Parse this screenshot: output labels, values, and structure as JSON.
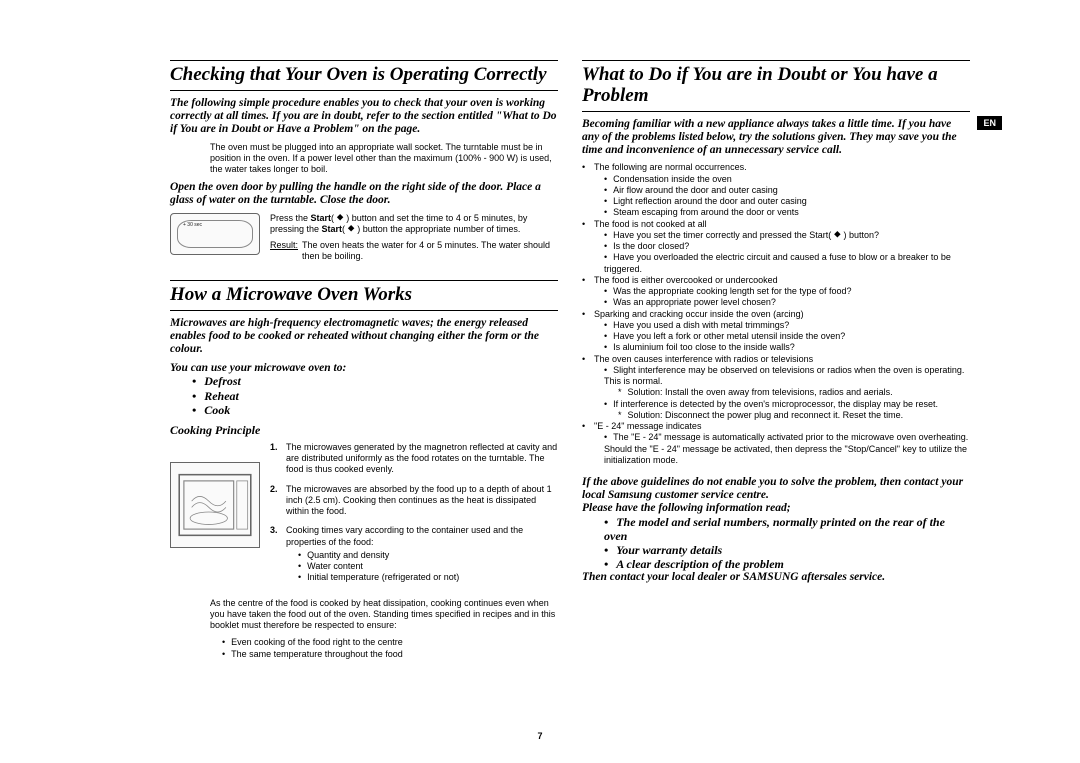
{
  "langTab": "EN",
  "pageNumber": "7",
  "left": {
    "sec1": {
      "title": "Checking that Your Oven is Operating Correctly",
      "intro": "The following simple procedure enables you to check that your oven is working correctly at all times. If you are in doubt, refer to the section entitled \"What to Do if You are in Doubt or Have a Problem\" on the page.",
      "para1": "The oven must be plugged into an appropriate wall socket. The turntable must be in position in the oven. If a power level other than the maximum (100% - 900 W) is used, the water takes longer to boil.",
      "step_open": "Open the oven door by pulling the handle on the right side of the door. Place a glass of water on the turntable. Close the door.",
      "box1_label": "+ 30 sec",
      "press_text_a": "Press the ",
      "press_text_b": " button and set the time to 4 or 5 minutes, by pressing the ",
      "press_text_c": " button the appropriate number of times.",
      "start_label": "Start",
      "result_label": "Result:",
      "result_text": "The oven heats the water for 4 or 5 minutes. The water should then be boiling."
    },
    "sec2": {
      "title": "How a Microwave Oven Works",
      "intro1": "Microwaves are high-frequency electromagnetic waves; the energy released enables food to be cooked or reheated without changing either the form or the colour.",
      "intro2": "You can use your microwave oven to:",
      "uses": [
        "Defrost",
        "Reheat",
        "Cook"
      ],
      "subhead": "Cooking Principle",
      "items": [
        "The microwaves generated by the magnetron reflected at cavity and are distributed uniformly as the food rotates on the turntable. The food is thus cooked evenly.",
        "The microwaves are absorbed by the food up to a depth of about 1 inch (2.5 cm). Cooking then continues as the heat is dissipated within the food.",
        "Cooking times vary according to the container used and the properties of the food:"
      ],
      "props": [
        "Quantity and density",
        "Water content",
        "Initial temperature (refrigerated or not)"
      ],
      "tail1": "As the centre of the food is cooked by heat dissipation, cooking continues even when you have taken the food out of the oven. Standing times specified in recipes and in this booklet must therefore be respected to ensure:",
      "tail_pts": [
        "Even cooking of the food right to the centre",
        "The same temperature throughout the food"
      ]
    }
  },
  "right": {
    "title": "What to Do if You are in Doubt or You have a Problem",
    "intro": "Becoming familiar with a new appliance always takes a little time. If you have any of the problems listed below, try the solutions given. They may save you the time and inconvenience of an unnecessary service call.",
    "groups": [
      {
        "head": "The following are normal occurrences.",
        "items": [
          "Condensation inside the oven",
          "Air flow around the door and outer casing",
          "Light reflection around the door and outer casing",
          "Steam escaping from around the door or vents"
        ]
      },
      {
        "head": "The food is not cooked at all",
        "items": [
          "Have you set the timer correctly and pressed the Start( ⯁ ) button?",
          "Is the door closed?",
          "Have you overloaded the electric circuit and caused a fuse to blow or a breaker to be triggered."
        ]
      },
      {
        "head": "The food is either overcooked or undercooked",
        "items": [
          "Was the appropriate cooking length set for the type of food?",
          "Was an appropriate power level chosen?"
        ]
      },
      {
        "head": "Sparking and cracking occur inside the oven (arcing)",
        "items": [
          "Have you used a dish with metal trimmings?",
          "Have you left a fork or other metal utensil inside the oven?",
          "Is aluminium foil too close to the inside walls?"
        ]
      },
      {
        "head": "The oven causes interference with radios or televisions",
        "items": [
          "Slight interference may be observed on televisions or radios when the oven is operating. This is normal."
        ],
        "sub": [
          "Solution: Install the oven away from televisions, radios and aerials."
        ]
      },
      {
        "head": "",
        "items": [
          "If interference is detected by the oven's microprocessor, the display may be reset."
        ],
        "sub": [
          "Solution: Disconnect the power plug and reconnect it. Reset the time."
        ]
      },
      {
        "head": "\"E - 24\" message indicates",
        "items": [
          "The \"E - 24\" message is automatically activated prior to the microwave oven overheating. Should the \"E - 24\" message be activated, then depress the \"Stop/Cancel\" key to utilize the initialization mode."
        ]
      }
    ],
    "closing1": "If the above guidelines do not enable you to solve the problem, then contact your local Samsung customer service centre.",
    "closing2": "Please have the following information read;",
    "closing_list": [
      "The model and serial numbers, normally printed on the rear of the oven",
      "Your warranty details",
      "A clear description of the problem"
    ],
    "closing3": "Then contact your local dealer or SAMSUNG aftersales service."
  }
}
